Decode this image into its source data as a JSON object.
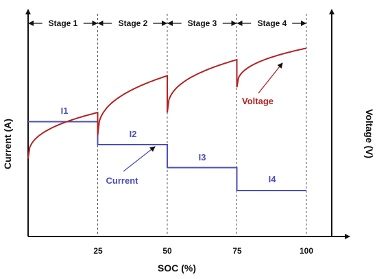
{
  "chart_data": {
    "type": "line",
    "xlabel": "SOC (%)",
    "ylabel_left": "Current (A)",
    "ylabel_right": "Voltage (V)",
    "xlim": [
      0,
      100
    ],
    "x_ticks": [
      "25",
      "50",
      "75",
      "100"
    ],
    "grid": false,
    "stage_boundaries": [
      25,
      50,
      75,
      100
    ],
    "stages": [
      {
        "label": "Stage 1",
        "from": 0,
        "to": 25
      },
      {
        "label": "Stage 2",
        "from": 25,
        "to": 50
      },
      {
        "label": "Stage 3",
        "from": 50,
        "to": 75
      },
      {
        "label": "Stage 4",
        "from": 75,
        "to": 100
      }
    ],
    "series": [
      {
        "name": "Current",
        "color": "#4a4fb8",
        "axis": "left",
        "step_levels": [
          {
            "label": "I1",
            "from": 0,
            "to": 25,
            "value": 0.5
          },
          {
            "label": "I2",
            "from": 25,
            "to": 50,
            "value": 0.4
          },
          {
            "label": "I3",
            "from": 50,
            "to": 75,
            "value": 0.3
          },
          {
            "label": "I4",
            "from": 75,
            "to": 100,
            "value": 0.2
          }
        ]
      },
      {
        "name": "Voltage",
        "color": "#b22222",
        "axis": "right",
        "segments": [
          {
            "from": 0,
            "to": 25,
            "start": 0.34,
            "end": 0.54
          },
          {
            "from": 25,
            "to": 50,
            "start": 0.44,
            "end": 0.7
          },
          {
            "from": 50,
            "to": 75,
            "start": 0.54,
            "end": 0.77
          },
          {
            "from": 75,
            "to": 100,
            "start": 0.65,
            "end": 0.82
          }
        ]
      }
    ],
    "annotations": [
      {
        "text": "Current",
        "target_series": "Current"
      },
      {
        "text": "Voltage",
        "target_series": "Voltage"
      }
    ]
  }
}
